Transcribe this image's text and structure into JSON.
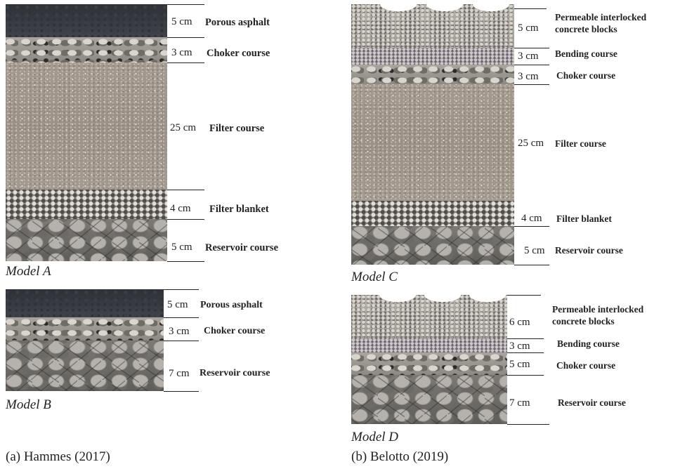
{
  "panels": [
    {
      "caption": "(a) Hammes (2017)",
      "models": [
        {
          "name": "Model A",
          "layers": [
            {
              "thickness": "5 cm",
              "label": "Porous asphalt",
              "material": "asphalt"
            },
            {
              "thickness": "3 cm",
              "label": "Choker course",
              "material": "choker"
            },
            {
              "thickness": "25 cm",
              "label": "Filter course",
              "material": "filter"
            },
            {
              "thickness": "4 cm",
              "label": "Filter blanket",
              "material": "blanket"
            },
            {
              "thickness": "5 cm",
              "label": "Reservoir course",
              "material": "reservoir"
            }
          ]
        },
        {
          "name": "Model B",
          "layers": [
            {
              "thickness": "5 cm",
              "label": "Porous asphalt",
              "material": "asphalt"
            },
            {
              "thickness": "3 cm",
              "label": "Choker course",
              "material": "choker"
            },
            {
              "thickness": "7 cm",
              "label": "Reservoir course",
              "material": "reservoir"
            }
          ]
        }
      ]
    },
    {
      "caption": "(b) Belotto (2019)",
      "models": [
        {
          "name": "Model C",
          "layers": [
            {
              "thickness": "5 cm",
              "label": "Permeable interlocked concrete blocks",
              "material": "pavers"
            },
            {
              "thickness": "3 cm",
              "label": "Bending course",
              "material": "bending"
            },
            {
              "thickness": "3 cm",
              "label": "Choker course",
              "material": "choker"
            },
            {
              "thickness": "25 cm",
              "label": "Filter course",
              "material": "filter"
            },
            {
              "thickness": "4 cm",
              "label": "Filter blanket",
              "material": "blanket"
            },
            {
              "thickness": "5 cm",
              "label": "Reservoir course",
              "material": "reservoir"
            }
          ]
        },
        {
          "name": "Model D",
          "layers": [
            {
              "thickness": "6 cm",
              "label": "Permeable interlocked concrete blocks",
              "material": "pavers"
            },
            {
              "thickness": "3 cm",
              "label": "Bending course",
              "material": "bending"
            },
            {
              "thickness": "5 cm",
              "label": "Choker course",
              "material": "choker"
            },
            {
              "thickness": "7 cm",
              "label": "Reservoir course",
              "material": "reservoir"
            }
          ]
        }
      ]
    }
  ]
}
